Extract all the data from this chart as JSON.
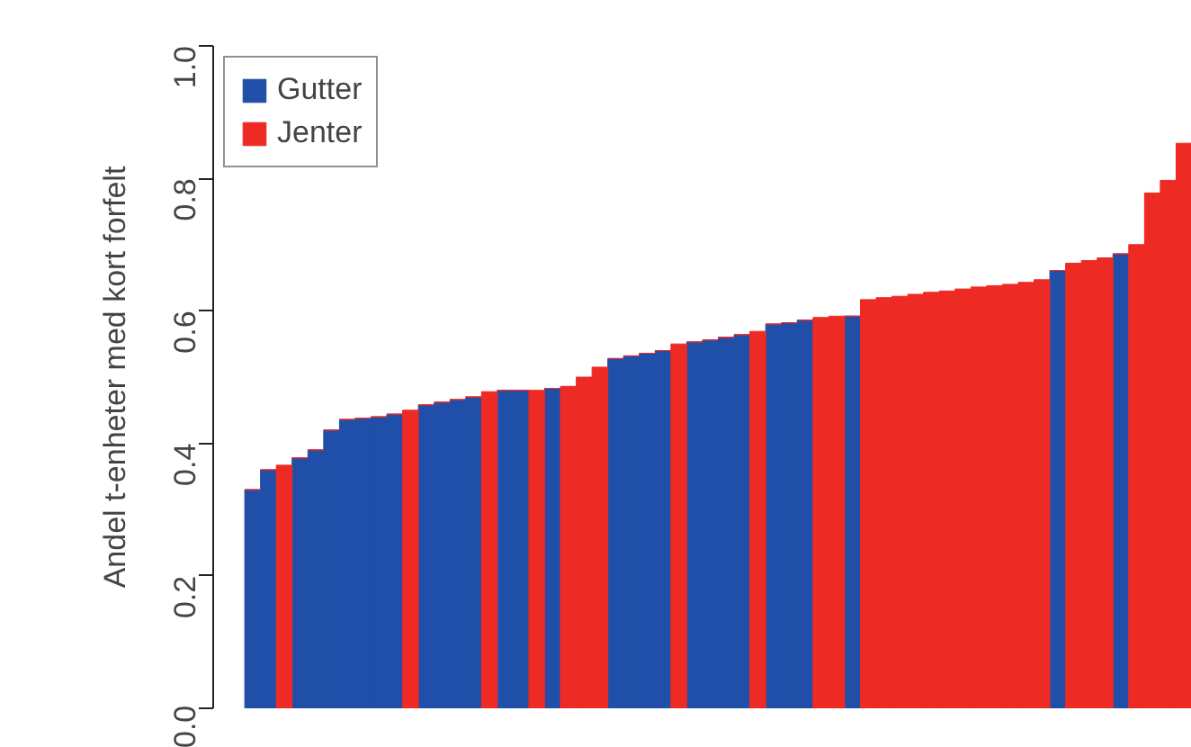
{
  "chart_data": {
    "type": "bar",
    "ylabel": "Andel t-enheter med kort forfelt",
    "stacked": true,
    "categories": [
      null,
      null,
      null,
      null,
      null,
      null,
      null,
      null,
      null,
      null,
      null,
      null,
      null,
      null,
      null,
      null,
      null,
      null,
      null,
      null,
      null,
      null,
      null,
      null,
      null,
      null,
      null,
      null,
      null,
      null,
      null,
      null,
      null,
      null,
      null,
      null,
      null,
      null,
      null,
      null,
      null,
      null,
      null,
      null,
      null,
      null,
      null,
      null,
      null,
      null,
      null,
      null,
      null,
      null,
      null,
      null,
      null,
      null,
      null,
      null
    ],
    "series": [
      {
        "name": "Gutter",
        "color": "#1f4fa8",
        "values": [
          0.33,
          0.36,
          0,
          0.378,
          0.39,
          0.42,
          0.436,
          0.438,
          0.44,
          0.444,
          0,
          0.458,
          0.462,
          0.466,
          0.47,
          0,
          0.48,
          0.48,
          0,
          0.483,
          0,
          0,
          0,
          0.528,
          0.532,
          0.536,
          0.54,
          0,
          0.553,
          0.556,
          0.56,
          0.564,
          0,
          0.58,
          0.582,
          0.586,
          0,
          0,
          0.592,
          0,
          0,
          0,
          0,
          0,
          0,
          0,
          0,
          0,
          0,
          0,
          0,
          0.661,
          0,
          0,
          0,
          0.686,
          0,
          0,
          0,
          0
        ]
      },
      {
        "name": "Jenter",
        "color": "#ee2a24",
        "values": [
          0,
          0,
          0.367,
          0,
          0,
          0,
          0,
          0,
          0,
          0,
          0.45,
          0,
          0,
          0,
          0,
          0.478,
          0,
          0,
          0.48,
          0,
          0.486,
          0.5,
          0.515,
          0,
          0,
          0,
          0,
          0.55,
          0,
          0,
          0,
          0,
          0.569,
          0,
          0,
          0,
          0.59,
          0.592,
          0,
          0.617,
          0.62,
          0.622,
          0.625,
          0.628,
          0.63,
          0.633,
          0.636,
          0.638,
          0.64,
          0.643,
          0.647,
          0,
          0.672,
          0.676,
          0.68,
          0,
          0.7,
          0.778,
          0.797,
          0.853
        ]
      }
    ],
    "ylim": [
      0,
      1
    ],
    "yticks": [
      {
        "value": 0,
        "label": "0.0"
      },
      {
        "value": 0.2,
        "label": "0.2"
      },
      {
        "value": 0.4,
        "label": "0.4"
      },
      {
        "value": 0.6,
        "label": "0.6"
      },
      {
        "value": 0.8,
        "label": "0.8"
      },
      {
        "value": 1,
        "label": "1.0"
      }
    ],
    "grid": false,
    "legend": "top left",
    "tick_labels": "y"
  }
}
